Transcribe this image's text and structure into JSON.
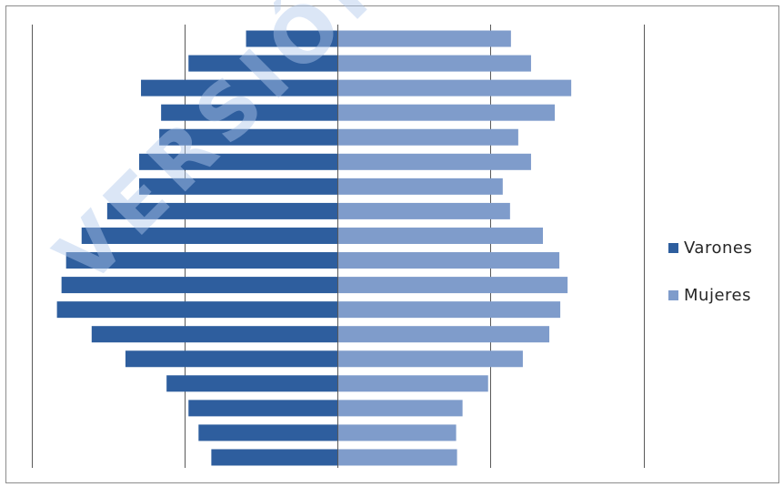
{
  "chart_data": {
    "type": "bar",
    "orientation": "horizontal",
    "subtype": "population-pyramid",
    "title": "",
    "xlabel": "",
    "ylabel": "",
    "categories": [
      "",
      "",
      "",
      "",
      "",
      "",
      "",
      "",
      "",
      "",
      "",
      "",
      "",
      "",
      "",
      "",
      "",
      ""
    ],
    "series": [
      {
        "name": "Varones",
        "color": "#2E5E9E",
        "values": [
          100,
          163,
          215,
          193,
          195,
          217,
          217,
          252,
          280,
          297,
          302,
          307,
          269,
          232,
          187,
          163,
          152,
          138
        ]
      },
      {
        "name": "Mujeres",
        "color": "#7F9CCB",
        "values": [
          190,
          212,
          256,
          238,
          198,
          212,
          181,
          189,
          225,
          243,
          252,
          244,
          232,
          203,
          165,
          137,
          130,
          131
        ]
      }
    ],
    "xlim": [
      -335,
      335
    ],
    "grid": true,
    "legend_position": "right"
  },
  "watermark": {
    "text": "VERSIÓN P"
  }
}
